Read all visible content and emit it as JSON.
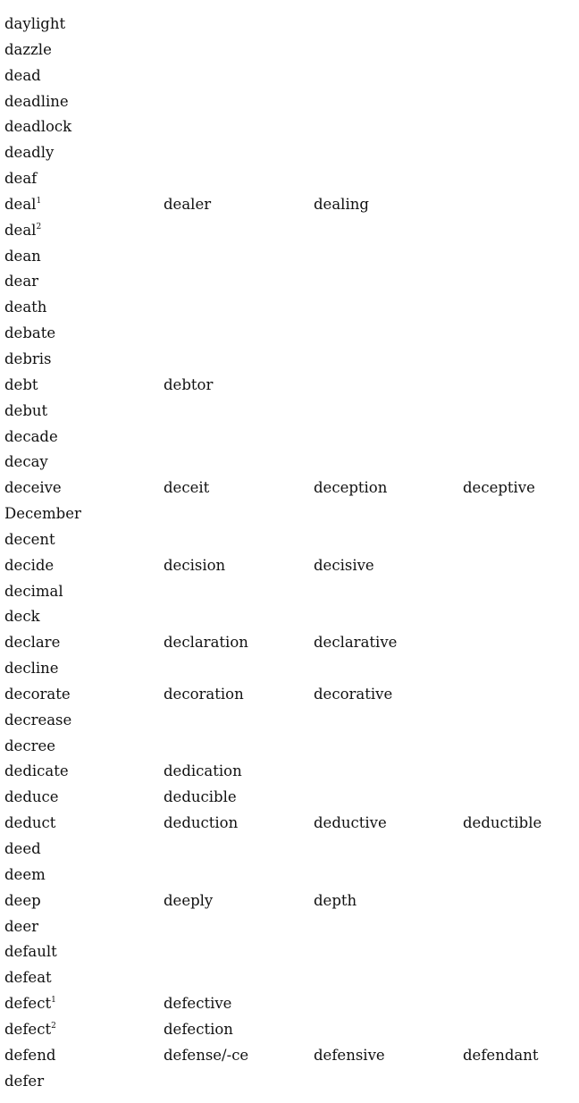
{
  "entries": [
    {
      "word": "daylight",
      "sup": "",
      "derived": []
    },
    {
      "word": "dazzle",
      "sup": "",
      "derived": []
    },
    {
      "word": "dead",
      "sup": "",
      "derived": []
    },
    {
      "word": "deadline",
      "sup": "",
      "derived": []
    },
    {
      "word": "deadlock",
      "sup": "",
      "derived": []
    },
    {
      "word": "deadly",
      "sup": "",
      "derived": []
    },
    {
      "word": "deaf",
      "sup": "",
      "derived": []
    },
    {
      "word": "deal",
      "sup": "1",
      "derived": [
        "dealer",
        "dealing"
      ]
    },
    {
      "word": "deal",
      "sup": "2",
      "derived": []
    },
    {
      "word": "dean",
      "sup": "",
      "derived": []
    },
    {
      "word": "dear",
      "sup": "",
      "derived": []
    },
    {
      "word": "death",
      "sup": "",
      "derived": []
    },
    {
      "word": "debate",
      "sup": "",
      "derived": []
    },
    {
      "word": "debris",
      "sup": "",
      "derived": []
    },
    {
      "word": "debt",
      "sup": "",
      "derived": [
        "debtor"
      ]
    },
    {
      "word": "debut",
      "sup": "",
      "derived": []
    },
    {
      "word": "decade",
      "sup": "",
      "derived": []
    },
    {
      "word": "decay",
      "sup": "",
      "derived": []
    },
    {
      "word": "deceive",
      "sup": "",
      "derived": [
        "deceit",
        "deception",
        "deceptive"
      ]
    },
    {
      "word": "December",
      "sup": "",
      "derived": []
    },
    {
      "word": "decent",
      "sup": "",
      "derived": []
    },
    {
      "word": "decide",
      "sup": "",
      "derived": [
        "decision",
        "decisive"
      ]
    },
    {
      "word": "decimal",
      "sup": "",
      "derived": []
    },
    {
      "word": "deck",
      "sup": "",
      "derived": []
    },
    {
      "word": "declare",
      "sup": "",
      "derived": [
        "declaration",
        "declarative"
      ]
    },
    {
      "word": "decline",
      "sup": "",
      "derived": []
    },
    {
      "word": "decorate",
      "sup": "",
      "derived": [
        "decoration",
        "decorative"
      ]
    },
    {
      "word": "decrease",
      "sup": "",
      "derived": []
    },
    {
      "word": "decree",
      "sup": "",
      "derived": []
    },
    {
      "word": "dedicate",
      "sup": "",
      "derived": [
        "dedication"
      ]
    },
    {
      "word": "deduce",
      "sup": "",
      "derived": [
        "deducible"
      ]
    },
    {
      "word": "deduct",
      "sup": "",
      "derived": [
        "deduction",
        "deductive",
        "deductible"
      ]
    },
    {
      "word": "deed",
      "sup": "",
      "derived": []
    },
    {
      "word": "deem",
      "sup": "",
      "derived": []
    },
    {
      "word": "deep",
      "sup": "",
      "derived": [
        "deeply",
        "depth"
      ]
    },
    {
      "word": "deer",
      "sup": "",
      "derived": []
    },
    {
      "word": "default",
      "sup": "",
      "derived": []
    },
    {
      "word": "defeat",
      "sup": "",
      "derived": []
    },
    {
      "word": "defect",
      "sup": "1",
      "derived": [
        "defective"
      ]
    },
    {
      "word": "defect",
      "sup": "2",
      "derived": [
        "defection"
      ]
    },
    {
      "word": "defend",
      "sup": "",
      "derived": [
        "defense/-ce",
        "defensive",
        "defendant"
      ]
    },
    {
      "word": "defer",
      "sup": "",
      "derived": []
    }
  ]
}
